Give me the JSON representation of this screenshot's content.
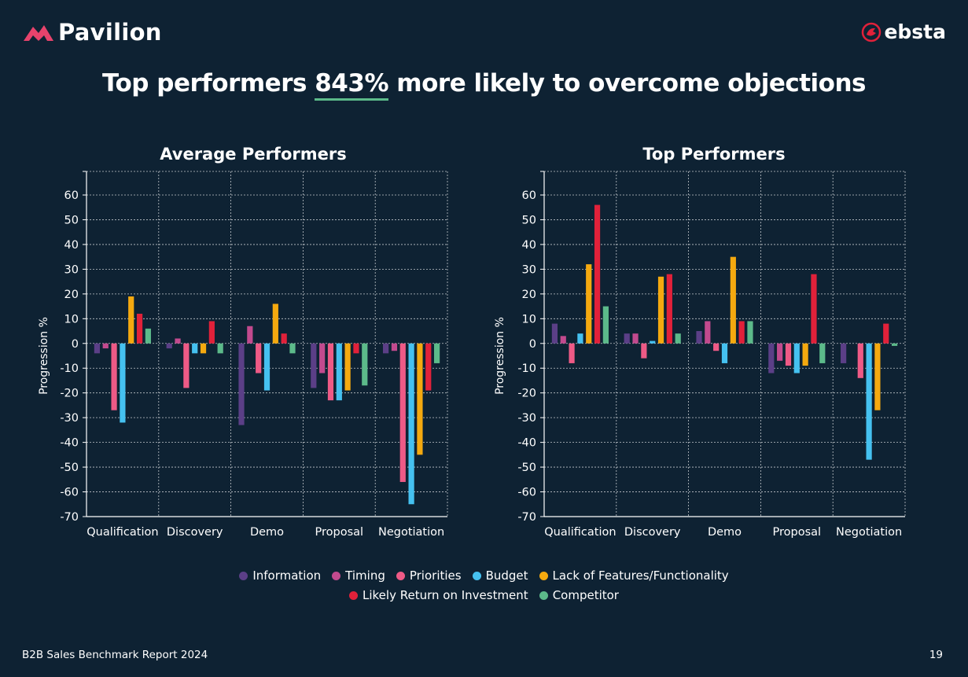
{
  "brand_left": "Pavilion",
  "brand_right": "ebsta",
  "headline": {
    "before": "Top performers ",
    "highlight": "843%",
    "after": " more likely to overcome objections"
  },
  "footer": {
    "report": "B2B Sales Benchmark Report 2024",
    "page": "19"
  },
  "colors": {
    "background": "#0e2233",
    "Information": "#5b3f87",
    "Timing": "#c24a8e",
    "Priorities": "#ee5a86",
    "Budget": "#45c1f0",
    "Lack of Features/Functionality": "#f5a90f",
    "Likely Return on Investment": "#e1213a",
    "Competitor": "#5cba8a"
  },
  "legend": {
    "row1": [
      "Information",
      "Timing",
      "Priorities",
      "Budget",
      "Lack of Features/Functionality"
    ],
    "row2": [
      "Likely Return on Investment",
      "Competitor"
    ]
  },
  "chart_data": [
    {
      "type": "bar",
      "title": "Average Performers",
      "ylabel": "Progression %",
      "ylim": [
        -70,
        70
      ],
      "yticks": [
        60,
        50,
        40,
        30,
        20,
        10,
        0,
        -10,
        -20,
        -30,
        -40,
        -50,
        -60,
        -70
      ],
      "grid": true,
      "categories": [
        "Qualification",
        "Discovery",
        "Demo",
        "Proposal",
        "Negotiation"
      ],
      "series": [
        {
          "name": "Information",
          "values": [
            -4,
            -2,
            -33,
            -18,
            -4
          ]
        },
        {
          "name": "Timing",
          "values": [
            -2,
            2,
            7,
            -12,
            -3
          ]
        },
        {
          "name": "Priorities",
          "values": [
            -27,
            -18,
            -12,
            -23,
            -56
          ]
        },
        {
          "name": "Budget",
          "values": [
            -32,
            -4,
            -19,
            -23,
            -65
          ]
        },
        {
          "name": "Lack of Features/Functionality",
          "values": [
            19,
            -4,
            16,
            -19,
            -45
          ]
        },
        {
          "name": "Likely Return on Investment",
          "values": [
            12,
            9,
            4,
            -4,
            -19
          ]
        },
        {
          "name": "Competitor",
          "values": [
            6,
            -4,
            -4,
            -17,
            -8
          ]
        }
      ]
    },
    {
      "type": "bar",
      "title": "Top Performers",
      "ylabel": "Progression %",
      "ylim": [
        -70,
        70
      ],
      "yticks": [
        60,
        50,
        40,
        30,
        20,
        10,
        0,
        -10,
        -20,
        -30,
        -40,
        -50,
        -60,
        -70
      ],
      "grid": true,
      "categories": [
        "Qualification",
        "Discovery",
        "Demo",
        "Proposal",
        "Negotiation"
      ],
      "series": [
        {
          "name": "Information",
          "values": [
            8,
            4,
            5,
            -12,
            -8
          ]
        },
        {
          "name": "Timing",
          "values": [
            3,
            4,
            9,
            -7,
            0
          ]
        },
        {
          "name": "Priorities",
          "values": [
            -8,
            -6,
            -3,
            -9,
            -14
          ]
        },
        {
          "name": "Budget",
          "values": [
            4,
            1,
            -8,
            -12,
            -47
          ]
        },
        {
          "name": "Lack of Features/Functionality",
          "values": [
            32,
            27,
            35,
            -9,
            -27
          ]
        },
        {
          "name": "Likely Return on Investment",
          "values": [
            56,
            28,
            9,
            28,
            8
          ]
        },
        {
          "name": "Competitor",
          "values": [
            15,
            4,
            9,
            -8,
            -1
          ]
        }
      ]
    }
  ]
}
